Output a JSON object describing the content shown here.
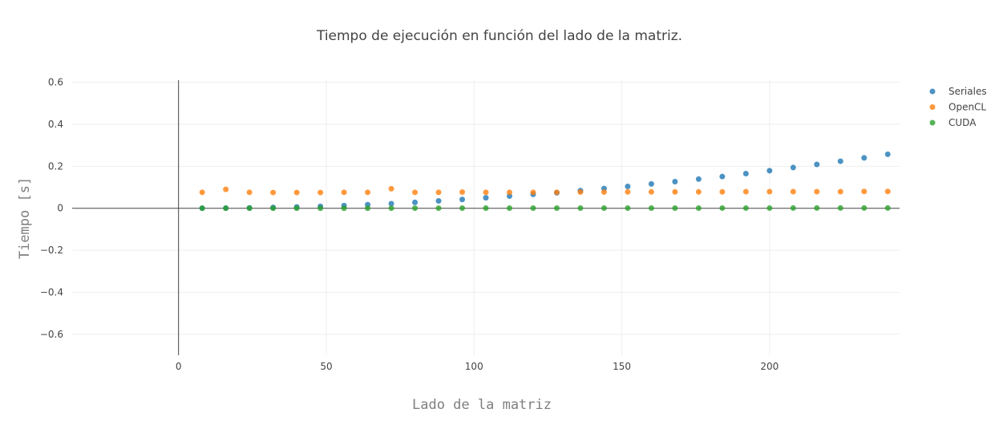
{
  "chart_data": {
    "type": "scatter",
    "title": "Tiempo de ejecución en función del lado de la matriz.",
    "xlabel": "Lado de la matriz",
    "ylabel": "Tiempo [s]",
    "xlim": [
      -36,
      244
    ],
    "ylim": [
      -0.7,
      0.61
    ],
    "xticks": [
      0,
      50,
      100,
      150,
      200
    ],
    "yticks": [
      -0.6,
      -0.4,
      -0.2,
      0,
      0.2,
      0.4,
      0.6
    ],
    "xtick_labels": [
      "0",
      "50",
      "100",
      "150",
      "200"
    ],
    "ytick_labels": [
      "−0.6",
      "−0.4",
      "−0.2",
      "0",
      "0.2",
      "0.4",
      "0.6"
    ],
    "grid": true,
    "legend_position": "top-right",
    "x": [
      8,
      16,
      24,
      32,
      40,
      48,
      56,
      64,
      72,
      80,
      88,
      96,
      104,
      112,
      120,
      128,
      136,
      144,
      152,
      160,
      168,
      176,
      184,
      192,
      200,
      208,
      216,
      224,
      232,
      240
    ],
    "series": [
      {
        "name": "Seriales",
        "color": "#1f77b4",
        "values": [
          0.0005,
          0.001,
          0.002,
          0.004,
          0.006,
          0.009,
          0.013,
          0.017,
          0.022,
          0.028,
          0.035,
          0.042,
          0.05,
          0.058,
          0.066,
          0.074,
          0.084,
          0.094,
          0.104,
          0.116,
          0.127,
          0.139,
          0.151,
          0.165,
          0.179,
          0.194,
          0.209,
          0.224,
          0.24,
          0.257
        ]
      },
      {
        "name": "OpenCL",
        "color": "#ff7f0e",
        "values": [
          0.076,
          0.09,
          0.076,
          0.075,
          0.075,
          0.075,
          0.076,
          0.076,
          0.093,
          0.076,
          0.076,
          0.077,
          0.076,
          0.076,
          0.076,
          0.076,
          0.077,
          0.077,
          0.078,
          0.078,
          0.078,
          0.078,
          0.078,
          0.079,
          0.079,
          0.079,
          0.079,
          0.079,
          0.08,
          0.08
        ]
      },
      {
        "name": "CUDA",
        "color": "#2ca02c",
        "values": [
          0.0002,
          0.0002,
          0.0003,
          0.0003,
          0.0003,
          0.0004,
          0.0004,
          0.0004,
          0.0005,
          0.0005,
          0.0005,
          0.0006,
          0.0006,
          0.0006,
          0.0007,
          0.0007,
          0.0007,
          0.0008,
          0.0008,
          0.0009,
          0.0009,
          0.0009,
          0.001,
          0.001,
          0.001,
          0.0011,
          0.0011,
          0.0012,
          0.0012,
          0.0013
        ]
      }
    ]
  }
}
